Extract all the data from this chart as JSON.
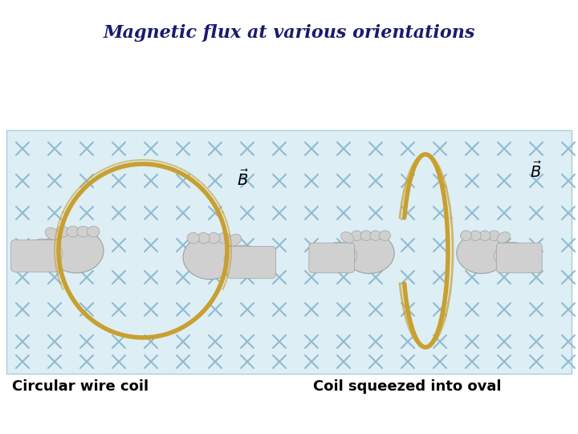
{
  "title": "Magnetic flux at various orientations",
  "title_color": "#1a1a6e",
  "title_fontsize": 16,
  "bg_color": "#ffffff",
  "panel_bg": "#ddeef5",
  "panel_border": "#aaccdd",
  "x_color": "#90bbd0",
  "coil_color": "#c8a030",
  "coil_lw": 4.0,
  "hand_color_face": "#d0d0d0",
  "hand_color_edge": "#a0a0a0",
  "label1": "Circular wire coil",
  "label2": "Coil squeezed into oval"
}
